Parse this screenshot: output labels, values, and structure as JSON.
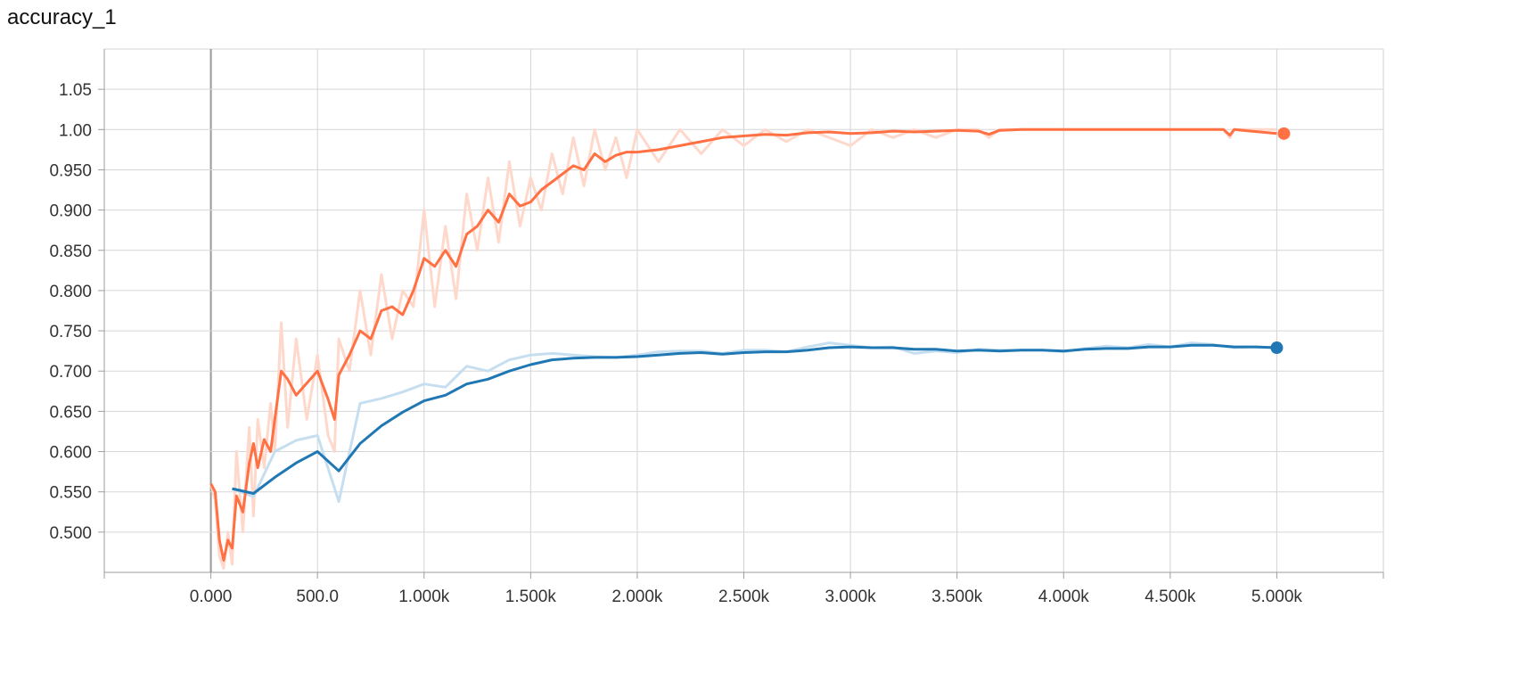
{
  "chart_data": {
    "type": "line",
    "title": "accuracy_1",
    "xlabel": "",
    "ylabel": "",
    "xlim": [
      -500,
      5500
    ],
    "ylim": [
      0.45,
      1.1
    ],
    "grid": true,
    "x_ticks": [
      0,
      500,
      1000,
      1500,
      2000,
      2500,
      3000,
      3500,
      4000,
      4500,
      5000
    ],
    "x_tick_labels": [
      "0.000",
      "500.0",
      "1.000k",
      "1.500k",
      "2.000k",
      "2.500k",
      "3.000k",
      "3.500k",
      "4.000k",
      "4.500k",
      "5.000k"
    ],
    "y_ticks": [
      0.5,
      0.55,
      0.6,
      0.65,
      0.7,
      0.75,
      0.8,
      0.85,
      0.9,
      0.95,
      1.0,
      1.05
    ],
    "y_tick_labels": [
      "0.500",
      "0.550",
      "0.600",
      "0.650",
      "0.700",
      "0.750",
      "0.800",
      "0.850",
      "0.900",
      "0.950",
      "1.00",
      "1.05"
    ],
    "series": [
      {
        "color": "#ff7043",
        "raw_color": "#ffd8cc",
        "x": [
          0,
          20,
          40,
          60,
          80,
          100,
          120,
          150,
          180,
          200,
          220,
          250,
          280,
          300,
          330,
          360,
          400,
          450,
          500,
          550,
          580,
          600,
          650,
          700,
          750,
          800,
          850,
          900,
          950,
          1000,
          1050,
          1100,
          1150,
          1200,
          1250,
          1300,
          1350,
          1400,
          1450,
          1500,
          1550,
          1600,
          1650,
          1700,
          1750,
          1800,
          1850,
          1900,
          1950,
          2000,
          2100,
          2200,
          2300,
          2400,
          2500,
          2600,
          2700,
          2800,
          2900,
          3000,
          3100,
          3200,
          3300,
          3400,
          3500,
          3600,
          3650,
          3700,
          3800,
          4000,
          4200,
          4400,
          4600,
          4750,
          4780,
          4800,
          5000
        ],
        "smoothed": [
          0.56,
          0.55,
          0.49,
          0.465,
          0.49,
          0.48,
          0.545,
          0.525,
          0.585,
          0.61,
          0.58,
          0.615,
          0.6,
          0.64,
          0.7,
          0.69,
          0.67,
          0.685,
          0.7,
          0.665,
          0.64,
          0.695,
          0.72,
          0.75,
          0.74,
          0.775,
          0.78,
          0.77,
          0.8,
          0.84,
          0.83,
          0.85,
          0.83,
          0.87,
          0.88,
          0.9,
          0.885,
          0.92,
          0.905,
          0.91,
          0.925,
          0.935,
          0.945,
          0.955,
          0.95,
          0.97,
          0.96,
          0.968,
          0.972,
          0.972,
          0.975,
          0.98,
          0.985,
          0.99,
          0.992,
          0.994,
          0.993,
          0.996,
          0.997,
          0.995,
          0.996,
          0.998,
          0.997,
          0.998,
          0.999,
          0.998,
          0.994,
          0.999,
          1.0,
          1.0,
          1.0,
          1.0,
          1.0,
          1.0,
          0.993,
          1.0,
          0.995
        ],
        "raw": [
          0.56,
          0.54,
          0.47,
          0.455,
          0.5,
          0.46,
          0.6,
          0.5,
          0.63,
          0.52,
          0.64,
          0.58,
          0.66,
          0.6,
          0.76,
          0.63,
          0.74,
          0.64,
          0.72,
          0.62,
          0.6,
          0.74,
          0.7,
          0.8,
          0.72,
          0.82,
          0.74,
          0.8,
          0.78,
          0.9,
          0.78,
          0.88,
          0.79,
          0.92,
          0.85,
          0.94,
          0.86,
          0.96,
          0.88,
          0.94,
          0.9,
          0.97,
          0.92,
          0.99,
          0.93,
          1.0,
          0.95,
          0.99,
          0.94,
          1.0,
          0.96,
          1.0,
          0.97,
          1.0,
          0.98,
          1.0,
          0.985,
          1.0,
          0.99,
          0.98,
          1.0,
          0.99,
          1.0,
          0.99,
          1.0,
          1.0,
          0.99,
          1.0,
          1.0,
          1.0,
          1.0,
          1.0,
          1.0,
          1.0,
          0.99,
          1.0,
          1.0
        ],
        "last_value": 0.995
      },
      {
        "color": "#1f77b4",
        "raw_color": "#c6dff0",
        "x": [
          100,
          200,
          300,
          400,
          500,
          600,
          700,
          800,
          900,
          1000,
          1100,
          1200,
          1300,
          1400,
          1500,
          1600,
          1700,
          1800,
          1900,
          2000,
          2100,
          2200,
          2300,
          2400,
          2500,
          2600,
          2700,
          2800,
          2900,
          3000,
          3100,
          3200,
          3300,
          3400,
          3500,
          3600,
          3700,
          3800,
          3900,
          4000,
          4100,
          4200,
          4300,
          4400,
          4500,
          4600,
          4700,
          4800,
          4900,
          5000
        ],
        "smoothed": [
          0.554,
          0.548,
          0.568,
          0.586,
          0.6,
          0.576,
          0.61,
          0.632,
          0.649,
          0.663,
          0.67,
          0.684,
          0.69,
          0.7,
          0.708,
          0.714,
          0.716,
          0.717,
          0.717,
          0.718,
          0.72,
          0.722,
          0.723,
          0.721,
          0.723,
          0.724,
          0.724,
          0.726,
          0.729,
          0.73,
          0.729,
          0.729,
          0.727,
          0.727,
          0.725,
          0.726,
          0.725,
          0.726,
          0.726,
          0.725,
          0.727,
          0.728,
          0.728,
          0.73,
          0.73,
          0.732,
          0.732,
          0.73,
          0.73,
          0.729
        ],
        "raw": [
          0.554,
          0.544,
          0.6,
          0.614,
          0.62,
          0.538,
          0.66,
          0.666,
          0.674,
          0.684,
          0.68,
          0.706,
          0.7,
          0.714,
          0.72,
          0.722,
          0.72,
          0.718,
          0.717,
          0.72,
          0.724,
          0.725,
          0.725,
          0.722,
          0.726,
          0.726,
          0.724,
          0.73,
          0.735,
          0.732,
          0.729,
          0.73,
          0.722,
          0.725,
          0.723,
          0.727,
          0.726,
          0.726,
          0.726,
          0.724,
          0.728,
          0.731,
          0.729,
          0.733,
          0.73,
          0.735,
          0.733,
          0.729,
          0.73,
          0.729
        ],
        "last_value": 0.729
      }
    ]
  }
}
